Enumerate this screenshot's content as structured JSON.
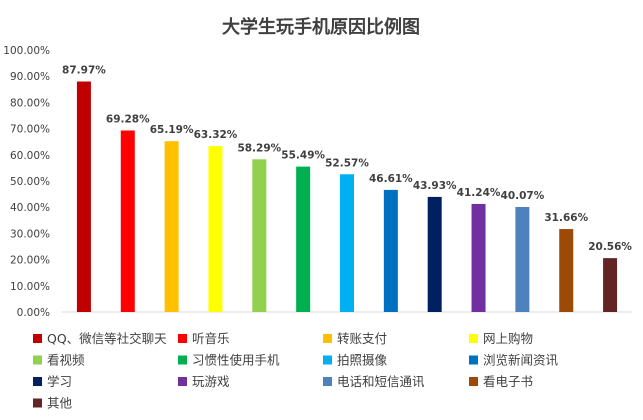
{
  "chart_data": {
    "type": "bar",
    "title": "大学生玩手机原因比例图",
    "xlabel": "",
    "ylabel": "",
    "ylim": [
      0,
      1
    ],
    "y_ticks": [
      "0.00%",
      "10.00%",
      "20.00%",
      "30.00%",
      "40.00%",
      "50.00%",
      "60.00%",
      "70.00%",
      "80.00%",
      "90.00%",
      "100.00%"
    ],
    "grid": false,
    "legend_position": "bottom",
    "categories": [
      "QQ、微信等社交聊天",
      "听音乐",
      "转账支付",
      "网上购物",
      "看视频",
      "习惯性使用手机",
      "拍照摄像",
      "浏览新闻资讯",
      "学习",
      "玩游戏",
      "电话和短信通讯",
      "看电子书",
      "其他"
    ],
    "values": [
      0.8797,
      0.6928,
      0.6519,
      0.6332,
      0.5829,
      0.5549,
      0.5257,
      0.4661,
      0.4393,
      0.4124,
      0.4007,
      0.3166,
      0.2056
    ],
    "data_labels": [
      "87.97%",
      "69.28%",
      "65.19%",
      "63.32%",
      "58.29%",
      "55.49%",
      "52.57%",
      "46.61%",
      "43.93%",
      "41.24%",
      "40.07%",
      "31.66%",
      "20.56%"
    ],
    "colors": [
      "#C00000",
      "#FF0000",
      "#FFC000",
      "#FFFF00",
      "#92D050",
      "#00B050",
      "#00B0F0",
      "#0070C0",
      "#002060",
      "#7030A0",
      "#4F81BD",
      "#9C4A06",
      "#632523"
    ]
  }
}
